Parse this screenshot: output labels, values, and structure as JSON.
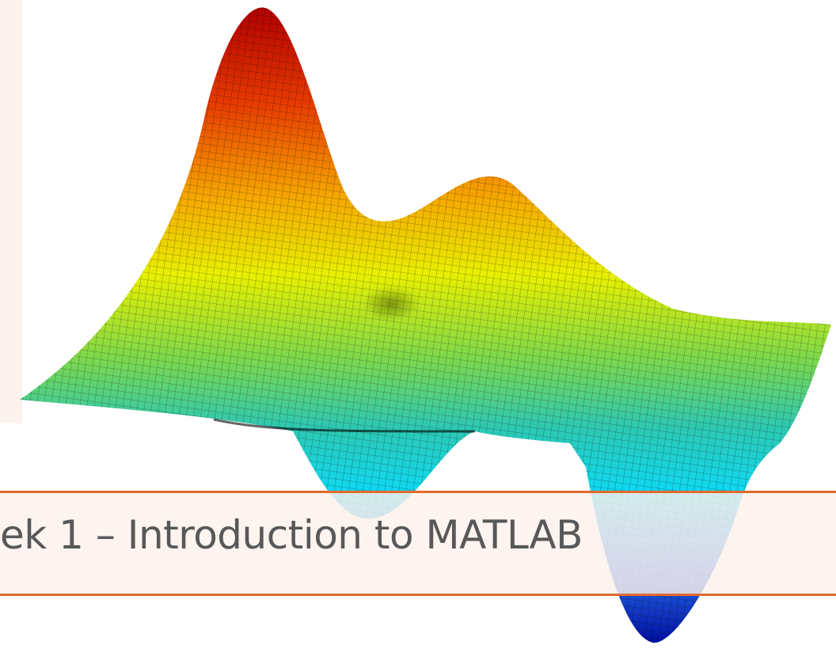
{
  "header": {
    "title": "ek 1 – Introduction to MATLAB"
  }
}
